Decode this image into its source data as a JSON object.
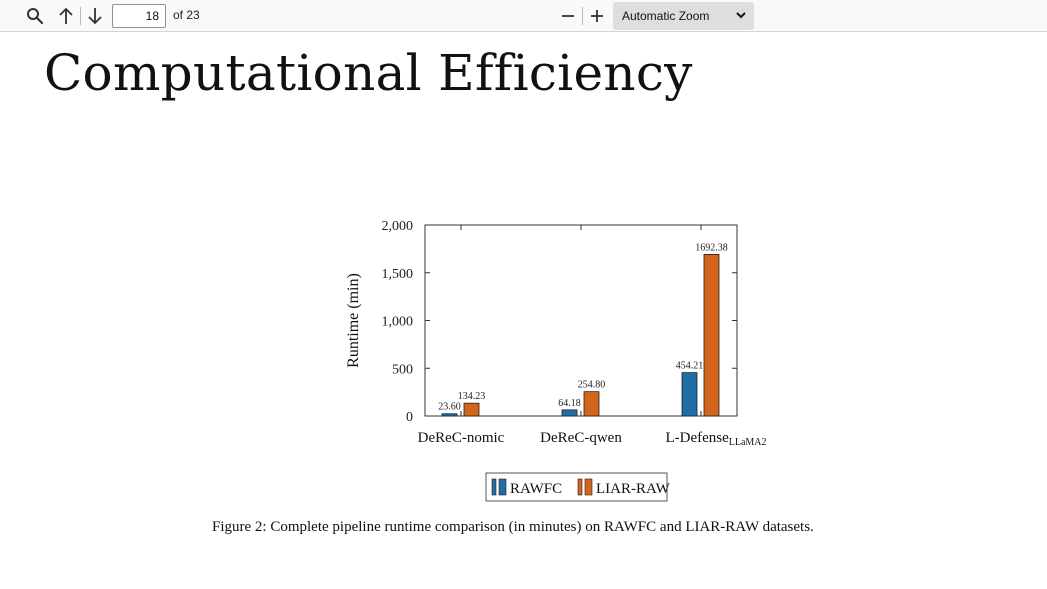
{
  "toolbar": {
    "search_icon": "search-icon",
    "prev_icon": "arrow-up-icon",
    "next_icon": "arrow-down-icon",
    "page_number": "18",
    "page_count": "of 23",
    "zoom_out_icon": "minus-icon",
    "zoom_in_icon": "plus-icon",
    "zoom_value": "Automatic Zoom"
  },
  "slide": {
    "title": "Computational Efficiency",
    "caption": "Figure 2: Complete pipeline runtime comparison (in minutes) on RAWFC and LIAR-RAW datasets."
  },
  "chart_data": {
    "type": "bar",
    "categories": [
      "DeReC-nomic",
      "DeReC-qwen",
      "L-Defense"
    ],
    "category_subscripts": [
      "",
      "",
      "LLaMA2"
    ],
    "series": [
      {
        "name": "RAWFC",
        "values": [
          23.6,
          64.18,
          454.21
        ],
        "labels": [
          "23.60",
          "64.18",
          "454.21"
        ],
        "color": "#1f6fa6"
      },
      {
        "name": "LIAR-RAW",
        "values": [
          134.23,
          254.8,
          1692.38
        ],
        "labels": [
          "134.23",
          "254.80",
          "1692.38"
        ],
        "color": "#d2651b"
      }
    ],
    "ylabel": "Runtime (min)",
    "ylim": [
      0,
      2000
    ],
    "yticks": [
      0,
      500,
      1000,
      1500,
      2000
    ],
    "ytick_labels": [
      "0",
      "500",
      "1,000",
      "1,500",
      "2,000"
    ],
    "legend_position": "below",
    "grid": false
  }
}
